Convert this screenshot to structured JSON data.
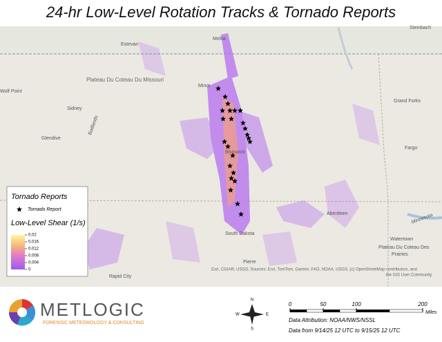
{
  "title": "24-hr Low-Level Rotation Tracks & Tornado Reports",
  "map": {
    "labels": [
      "Estevan",
      "Minot",
      "Wolf Point",
      "Sidney",
      "Glendive",
      "Badlands",
      "Plateau Du Coteau Du Missouri",
      "Grand Forks",
      "Fargo",
      "Bismarck",
      "Aberdeen",
      "Watertown",
      "Plateau Du Coteau Des",
      "Prairies",
      "South Dakota",
      "Pierre",
      "Rapid City",
      "Steinbach",
      "Melita",
      "Minnesota"
    ]
  },
  "legend": {
    "title": "Tornado Reports",
    "marker_label": "Tornado Report",
    "colorbar_title": "Low-Level Shear (1/s)",
    "lim": [
      0,
      0.02
    ],
    "ticks": [
      0.02,
      0.016,
      0.012,
      0.008,
      0.004,
      0
    ]
  },
  "attribution": [
    "Esri, CGIAR, USGS, Sources: Esri, TomTom, Garmin, FAO, NOAA, USGS, (c) OpenStreetMap contributors, and",
    "the GIS User Community"
  ],
  "logo": {
    "name": "METLOGIC",
    "tagline": "FORENSIC METEOROLOGY & CONSULTING"
  },
  "compass": {
    "n": "N",
    "e": "E",
    "s": "S",
    "w": "W"
  },
  "scale_bar": {
    "lim": [
      0,
      200
    ],
    "ticks": [
      0,
      50,
      100,
      200
    ],
    "unit": "Miles"
  },
  "footer": [
    "Data Attribution: NOAA/NWS/NSSL",
    "Data from 9/14/25 12 UTC to 9/15/25 12 UTC"
  ]
}
